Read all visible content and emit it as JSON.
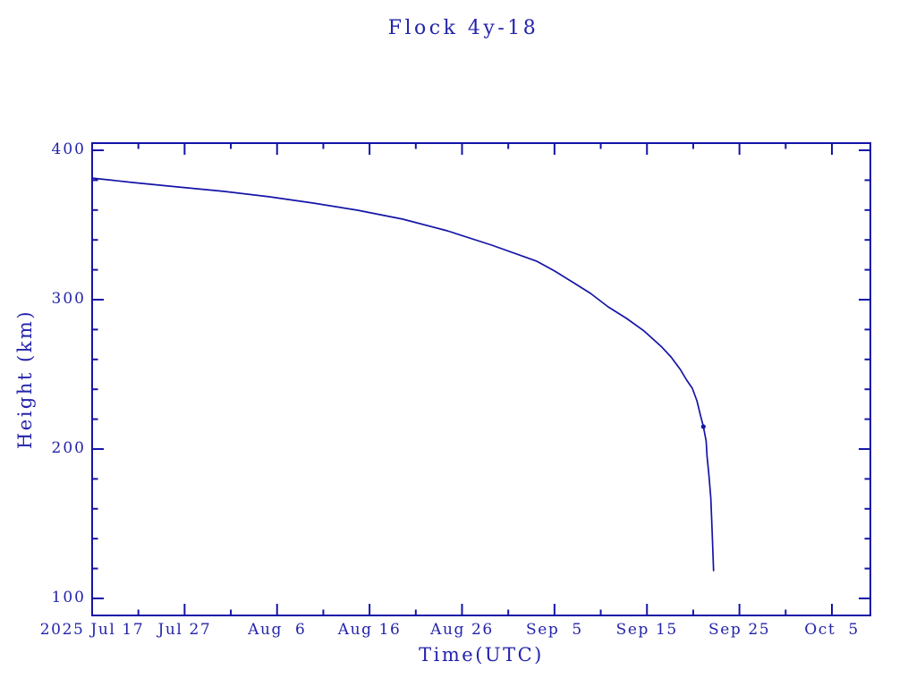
{
  "window": {
    "background": "#ffffff"
  },
  "chart_data": {
    "type": "line",
    "title": "Flock 4y-18",
    "xlabel": "Time(UTC)",
    "ylabel": "Height (km)",
    "grid": false,
    "legend": "none",
    "x_axis": {
      "unit": "days since 2025 Jul 17 (UTC)",
      "range_days": [
        0,
        84.16
      ],
      "major_ticks": [
        {
          "day": 0,
          "label": "2025 Jul 17"
        },
        {
          "day": 10,
          "label": "Jul 27"
        },
        {
          "day": 20,
          "label": "Aug  6"
        },
        {
          "day": 30,
          "label": "Aug 16"
        },
        {
          "day": 40,
          "label": "Aug 26"
        },
        {
          "day": 50,
          "label": "Sep  5"
        },
        {
          "day": 60,
          "label": "Sep 15"
        },
        {
          "day": 70,
          "label": "Sep 25"
        },
        {
          "day": 80,
          "label": "Oct  5"
        }
      ],
      "minor_tick_days": [
        5,
        15,
        25,
        35,
        45,
        55,
        65,
        75
      ]
    },
    "y_axis": {
      "unit": "km",
      "range_km": [
        88.6,
        404.8
      ],
      "major_ticks": [
        {
          "km": 100,
          "label": "100"
        },
        {
          "km": 200,
          "label": "200"
        },
        {
          "km": 300,
          "label": "300"
        },
        {
          "km": 400,
          "label": "400"
        }
      ],
      "minor_tick_kms": [
        120,
        140,
        160,
        180,
        220,
        240,
        260,
        280,
        320,
        340,
        360,
        380
      ]
    },
    "series": [
      {
        "name": "Flock 4y-18 orbital height",
        "points_day_km": [
          [
            0,
            381.4
          ],
          [
            4.5,
            378.4
          ],
          [
            9.4,
            375.4
          ],
          [
            14.2,
            372.5
          ],
          [
            19.1,
            368.9
          ],
          [
            23.9,
            364.7
          ],
          [
            28.7,
            359.9
          ],
          [
            33.6,
            353.9
          ],
          [
            38.4,
            346.1
          ],
          [
            43.2,
            336.5
          ],
          [
            48.1,
            325.7
          ],
          [
            50.0,
            319.2
          ],
          [
            51.9,
            312.0
          ],
          [
            53.9,
            304.2
          ],
          [
            55.8,
            295.2
          ],
          [
            57.8,
            287.4
          ],
          [
            59.7,
            279.0
          ],
          [
            61.6,
            268.3
          ],
          [
            62.6,
            261.7
          ],
          [
            63.6,
            253.3
          ],
          [
            64.3,
            246.1
          ],
          [
            64.9,
            240.7
          ],
          [
            65.4,
            232.3
          ],
          [
            65.8,
            222.2
          ],
          [
            66.1,
            215.0
          ],
          [
            66.4,
            205.4
          ],
          [
            66.5,
            195.2
          ],
          [
            66.7,
            182.6
          ],
          [
            66.9,
            167.4
          ],
          [
            67.0,
            152.5
          ],
          [
            67.1,
            136.9
          ],
          [
            67.2,
            118.6
          ]
        ]
      }
    ],
    "marker_point_day_km": [
      66.1,
      215.0
    ],
    "colors": {
      "line": "#1414a8",
      "frame": "#1414a8",
      "text": "#2323ab",
      "background": "#ffffff"
    }
  }
}
